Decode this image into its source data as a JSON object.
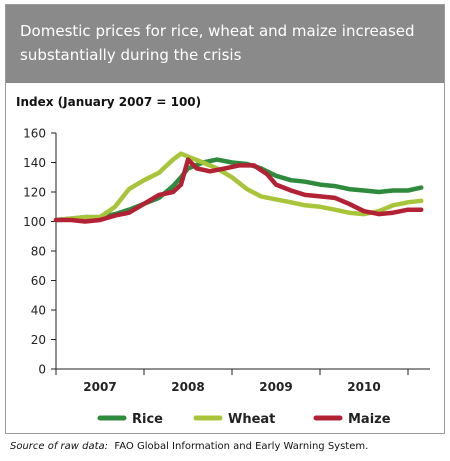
{
  "chart_data": {
    "type": "line",
    "title": "Domestic prices for rice, wheat and maize increased substantially during the crisis",
    "ylabel": "Index (January 2007 = 100)",
    "xlabel": "",
    "ylim": [
      0,
      160
    ],
    "yticks": [
      0,
      20,
      40,
      60,
      80,
      100,
      120,
      140,
      160
    ],
    "xlim": [
      2006.5,
      2010.75
    ],
    "xticks": [
      "2007",
      "2008",
      "2009",
      "2010"
    ],
    "grid": false,
    "legend_position": "bottom",
    "series": [
      {
        "name": "Rice",
        "color": "#2e8b3d",
        "points": [
          [
            2006.5,
            101
          ],
          [
            2006.67,
            102
          ],
          [
            2006.83,
            103
          ],
          [
            2007.0,
            103
          ],
          [
            2007.17,
            105
          ],
          [
            2007.33,
            108
          ],
          [
            2007.5,
            112
          ],
          [
            2007.67,
            116
          ],
          [
            2007.83,
            124
          ],
          [
            2007.92,
            130
          ],
          [
            2008.0,
            136
          ],
          [
            2008.17,
            140
          ],
          [
            2008.33,
            142
          ],
          [
            2008.5,
            140
          ],
          [
            2008.67,
            139
          ],
          [
            2008.83,
            136
          ],
          [
            2009.0,
            131
          ],
          [
            2009.17,
            128
          ],
          [
            2009.33,
            127
          ],
          [
            2009.5,
            125
          ],
          [
            2009.67,
            124
          ],
          [
            2009.83,
            122
          ],
          [
            2010.0,
            121
          ],
          [
            2010.17,
            120
          ],
          [
            2010.33,
            121
          ],
          [
            2010.5,
            121
          ],
          [
            2010.65,
            123
          ]
        ]
      },
      {
        "name": "Wheat",
        "color": "#a8c43a",
        "points": [
          [
            2006.5,
            101
          ],
          [
            2006.67,
            102
          ],
          [
            2006.83,
            103
          ],
          [
            2007.0,
            103
          ],
          [
            2007.17,
            110
          ],
          [
            2007.33,
            122
          ],
          [
            2007.5,
            128
          ],
          [
            2007.67,
            133
          ],
          [
            2007.83,
            142
          ],
          [
            2007.92,
            146
          ],
          [
            2008.0,
            144
          ],
          [
            2008.17,
            140
          ],
          [
            2008.33,
            136
          ],
          [
            2008.5,
            130
          ],
          [
            2008.67,
            122
          ],
          [
            2008.83,
            117
          ],
          [
            2009.0,
            115
          ],
          [
            2009.17,
            113
          ],
          [
            2009.33,
            111
          ],
          [
            2009.5,
            110
          ],
          [
            2009.67,
            108
          ],
          [
            2009.83,
            106
          ],
          [
            2010.0,
            105
          ],
          [
            2010.17,
            107
          ],
          [
            2010.33,
            111
          ],
          [
            2010.5,
            113
          ],
          [
            2010.65,
            114
          ]
        ]
      },
      {
        "name": "Maize",
        "color": "#b22234",
        "points": [
          [
            2006.5,
            101
          ],
          [
            2006.67,
            101
          ],
          [
            2006.83,
            100
          ],
          [
            2007.0,
            101
          ],
          [
            2007.17,
            104
          ],
          [
            2007.33,
            106
          ],
          [
            2007.5,
            112
          ],
          [
            2007.67,
            118
          ],
          [
            2007.83,
            120
          ],
          [
            2007.92,
            125
          ],
          [
            2008.0,
            142
          ],
          [
            2008.1,
            136
          ],
          [
            2008.25,
            134
          ],
          [
            2008.42,
            136
          ],
          [
            2008.58,
            138
          ],
          [
            2008.75,
            138
          ],
          [
            2008.9,
            132
          ],
          [
            2009.0,
            125
          ],
          [
            2009.17,
            121
          ],
          [
            2009.33,
            118
          ],
          [
            2009.5,
            117
          ],
          [
            2009.67,
            116
          ],
          [
            2009.83,
            112
          ],
          [
            2010.0,
            107
          ],
          [
            2010.17,
            105
          ],
          [
            2010.33,
            106
          ],
          [
            2010.5,
            108
          ],
          [
            2010.65,
            108
          ]
        ]
      }
    ]
  },
  "source": {
    "lead": "Source of raw data:",
    "text": "FAO Global Information and Early Warning System."
  }
}
